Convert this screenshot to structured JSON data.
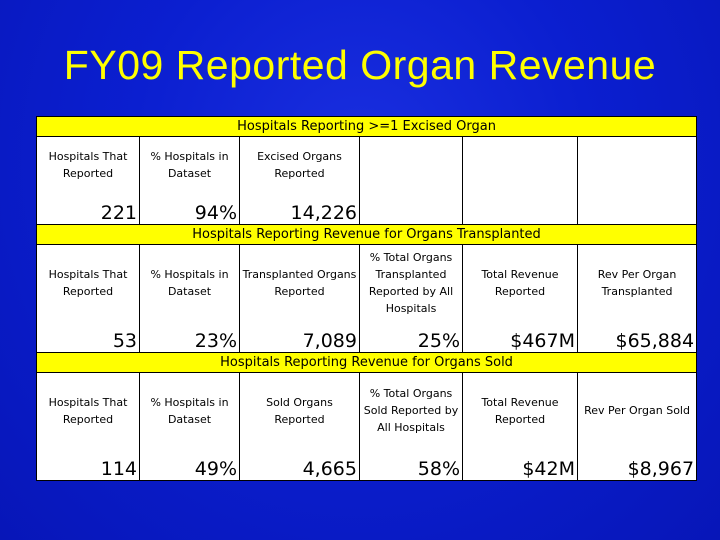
{
  "title": "FY09 Reported Organ Revenue",
  "sections": {
    "excised": {
      "band": "Hospitals Reporting >=1 Excised Organ",
      "headers": [
        "Hospitals That Reported",
        "% Hospitals in Dataset",
        "Excised Organs Reported",
        "",
        "",
        ""
      ],
      "values": [
        "221",
        "94%",
        "14,226",
        "",
        "",
        ""
      ]
    },
    "transplanted": {
      "band": "Hospitals Reporting Revenue for Organs Transplanted",
      "headers": [
        "Hospitals That Reported",
        "% Hospitals in Dataset",
        "Transplanted Organs Reported",
        "% Total Organs Transplanted Reported by All Hospitals",
        "Total Revenue Reported",
        "Rev Per Organ Transplanted"
      ],
      "values": [
        "53",
        "23%",
        "7,089",
        "25%",
        "$467M",
        "$65,884"
      ]
    },
    "sold": {
      "band": "Hospitals Reporting Revenue for Organs Sold",
      "headers": [
        "Hospitals That Reported",
        "% Hospitals in Dataset",
        "Sold Organs Reported",
        "% Total Organs Sold Reported by All Hospitals",
        "Total Revenue Reported",
        "Rev Per Organ Sold"
      ],
      "values": [
        "114",
        "49%",
        "4,665",
        "58%",
        "$42M",
        "$8,967"
      ]
    }
  }
}
